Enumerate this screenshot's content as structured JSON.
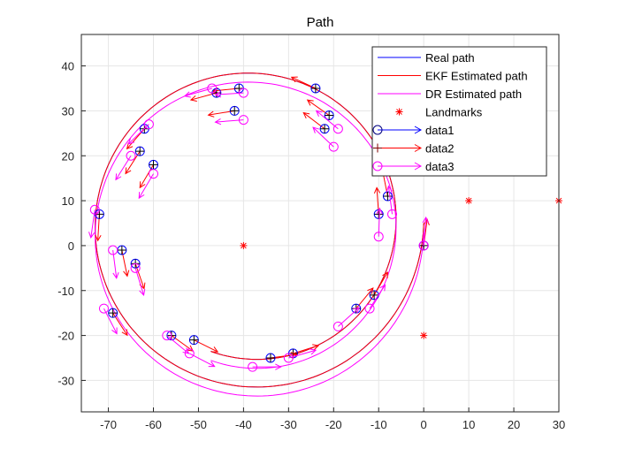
{
  "chart_data": {
    "type": "line",
    "title": "Path",
    "xlabel": "",
    "ylabel": "",
    "xlim": [
      -76,
      30
    ],
    "ylim": [
      -37,
      47
    ],
    "xticks": [
      -70,
      -60,
      -50,
      -40,
      -30,
      -20,
      -10,
      0,
      10,
      20,
      30
    ],
    "yticks": [
      -30,
      -20,
      -10,
      0,
      10,
      20,
      30,
      40
    ],
    "grid": true,
    "legend_position": "top-right",
    "legend": [
      {
        "label": "Real path",
        "color": "#0000ff",
        "style": "line"
      },
      {
        "label": "EKF Estimated path",
        "color": "#ff0000",
        "style": "line"
      },
      {
        "label": "DR Estimated path",
        "color": "#ff00ff",
        "style": "line"
      },
      {
        "label": "Landmarks",
        "color": "#ff0000",
        "style": "star"
      },
      {
        "label": "data1",
        "color": "#0000ff",
        "style": "circle-arrow"
      },
      {
        "label": "data2",
        "color": "#ff0000",
        "style": "plus-arrow"
      },
      {
        "label": "data3",
        "color": "#ff00ff",
        "style": "circle-arrow"
      }
    ],
    "landmarks": [
      [
        -40,
        0
      ],
      [
        0,
        -20
      ],
      [
        10,
        10
      ],
      [
        30,
        10
      ]
    ],
    "series": [
      {
        "name": "Real path",
        "color": "#0000ff",
        "cx": -38,
        "cy": 5,
        "r0": 38,
        "r1": 30,
        "turns": 1.3
      },
      {
        "name": "EKF Estimated path",
        "color": "#ff0000",
        "cx": -38,
        "cy": 5,
        "r0": 38,
        "r1": 30,
        "turns": 1.3
      },
      {
        "name": "DR Estimated path",
        "color": "#ff00ff",
        "cx": -38,
        "cy": 3,
        "r0": 38,
        "r1": 30,
        "turns": 1.3
      }
    ],
    "data1_points": [
      [
        0,
        0
      ],
      [
        -8,
        11
      ],
      [
        -10,
        7
      ],
      [
        -11,
        -11
      ],
      [
        -15,
        -14
      ],
      [
        -29,
        -24
      ],
      [
        -34,
        -25
      ],
      [
        -51,
        -21
      ],
      [
        -56,
        -20
      ],
      [
        -69,
        -15
      ],
      [
        -64,
        -4
      ],
      [
        -67,
        -1
      ],
      [
        -72,
        7
      ],
      [
        -60,
        18
      ],
      [
        -63,
        21
      ],
      [
        -62,
        26
      ],
      [
        -42,
        30
      ],
      [
        -41,
        35
      ],
      [
        -46,
        34
      ],
      [
        -24,
        35
      ],
      [
        -21,
        29
      ],
      [
        -22,
        26
      ]
    ],
    "data3_points": [
      [
        0,
        0
      ],
      [
        -7,
        7
      ],
      [
        -10,
        2
      ],
      [
        -12,
        -14
      ],
      [
        -19,
        -18
      ],
      [
        -30,
        -25
      ],
      [
        -38,
        -27
      ],
      [
        -52,
        -24
      ],
      [
        -57,
        -20
      ],
      [
        -71,
        -14
      ],
      [
        -64,
        -5
      ],
      [
        -69,
        -1
      ],
      [
        -73,
        8
      ],
      [
        -60,
        16
      ],
      [
        -65,
        20
      ],
      [
        -61,
        27
      ],
      [
        -40,
        28
      ],
      [
        -40,
        34
      ],
      [
        -47,
        35
      ],
      [
        -20,
        22
      ],
      [
        -19,
        26
      ]
    ]
  }
}
